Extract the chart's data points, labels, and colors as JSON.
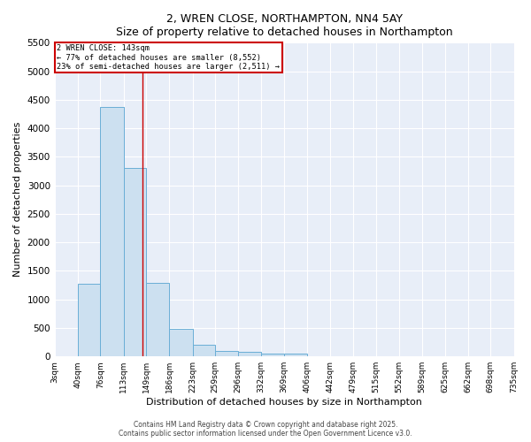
{
  "title": "2, WREN CLOSE, NORTHAMPTON, NN4 5AY",
  "subtitle": "Size of property relative to detached houses in Northampton",
  "xlabel": "Distribution of detached houses by size in Northampton",
  "ylabel": "Number of detached properties",
  "bar_color": "#cce0f0",
  "bar_edge_color": "#6aaed6",
  "background_color": "#e8eef8",
  "grid_color": "#ffffff",
  "bin_labels": [
    "3sqm",
    "40sqm",
    "76sqm",
    "113sqm",
    "149sqm",
    "186sqm",
    "223sqm",
    "259sqm",
    "296sqm",
    "332sqm",
    "369sqm",
    "406sqm",
    "442sqm",
    "479sqm",
    "515sqm",
    "552sqm",
    "589sqm",
    "625sqm",
    "662sqm",
    "698sqm",
    "735sqm"
  ],
  "bin_edges": [
    3,
    40,
    76,
    113,
    149,
    186,
    223,
    259,
    296,
    332,
    369,
    406,
    442,
    479,
    515,
    552,
    589,
    625,
    662,
    698,
    735
  ],
  "bar_heights": [
    0,
    1270,
    4380,
    3300,
    1290,
    490,
    200,
    90,
    80,
    50,
    50,
    0,
    0,
    0,
    0,
    0,
    0,
    0,
    0,
    0
  ],
  "property_size": 143,
  "annotation_line1": "2 WREN CLOSE: 143sqm",
  "annotation_line2": "← 77% of detached houses are smaller (8,552)",
  "annotation_line3": "23% of semi-detached houses are larger (2,511) →",
  "red_line_color": "#cc0000",
  "annotation_box_color": "#cc0000",
  "ylim": [
    0,
    5500
  ],
  "yticks": [
    0,
    500,
    1000,
    1500,
    2000,
    2500,
    3000,
    3500,
    4000,
    4500,
    5000,
    5500
  ],
  "footer_line1": "Contains HM Land Registry data © Crown copyright and database right 2025.",
  "footer_line2": "Contains public sector information licensed under the Open Government Licence v3.0."
}
